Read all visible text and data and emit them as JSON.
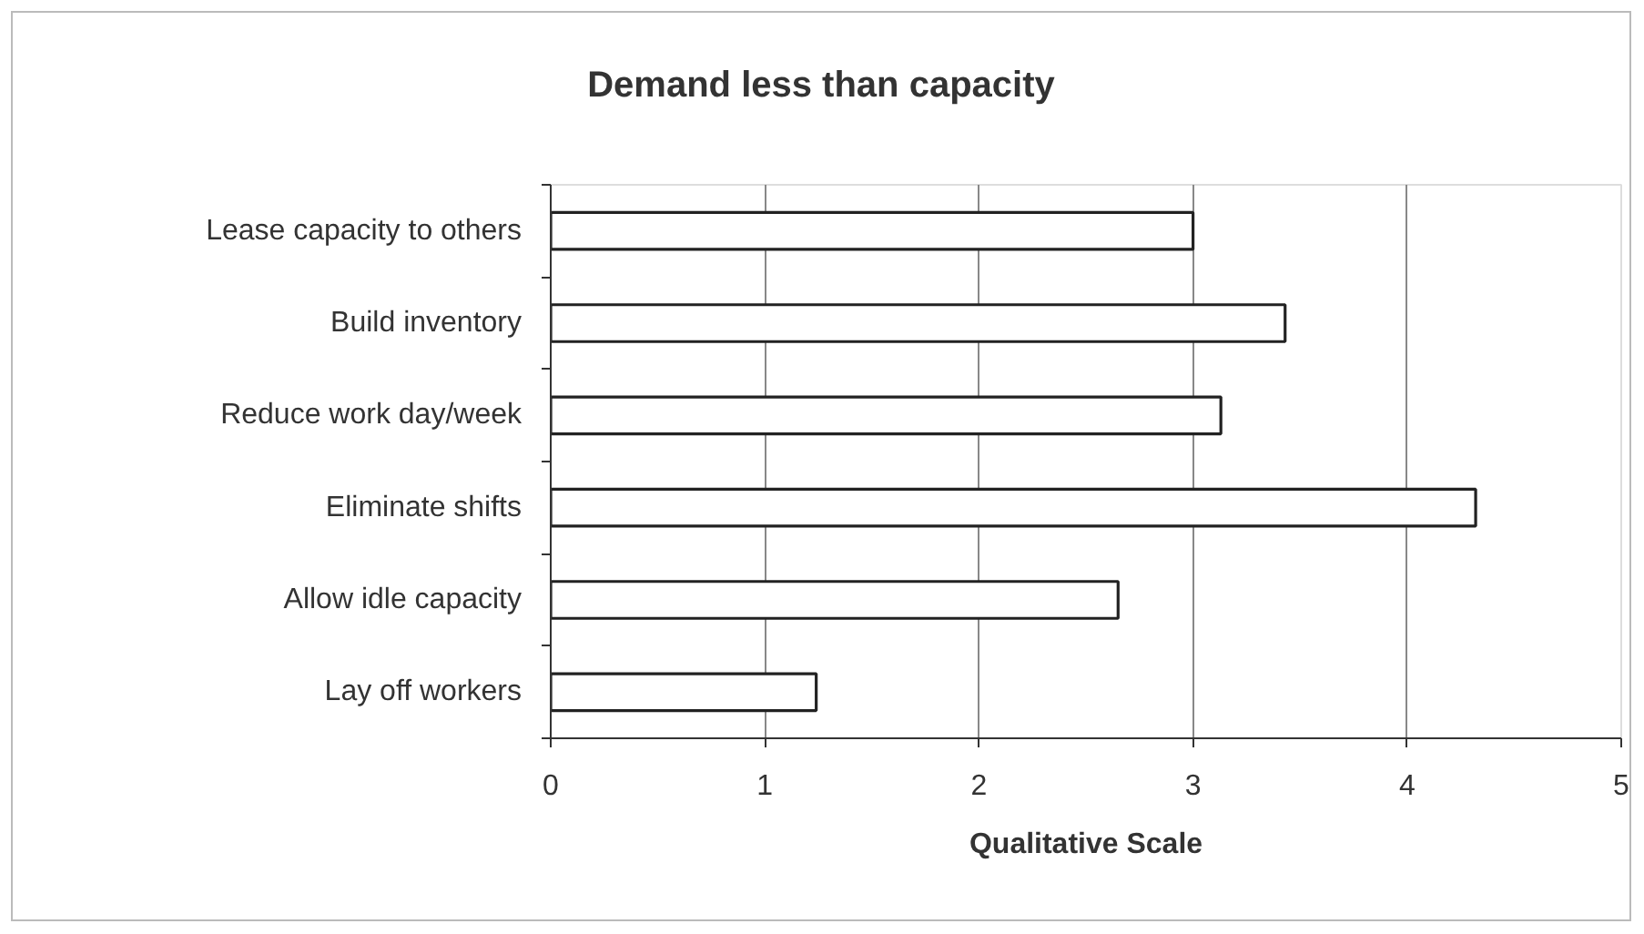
{
  "chart_data": {
    "type": "bar",
    "title": "Demand less than capacity",
    "xlabel": "Qualitative Scale",
    "orientation": "horizontal",
    "categories": [
      "Lease capacity to others",
      "Build inventory",
      "Reduce work day/week",
      "Eliminate shifts",
      "Allow idle capacity",
      "Lay off workers"
    ],
    "values": [
      3.0,
      3.43,
      3.13,
      4.32,
      2.65,
      1.24
    ],
    "color": "#ffffff",
    "xlim": [
      0,
      5
    ],
    "xticks": [
      0,
      1,
      2,
      3,
      4,
      5
    ],
    "grid": "x"
  }
}
